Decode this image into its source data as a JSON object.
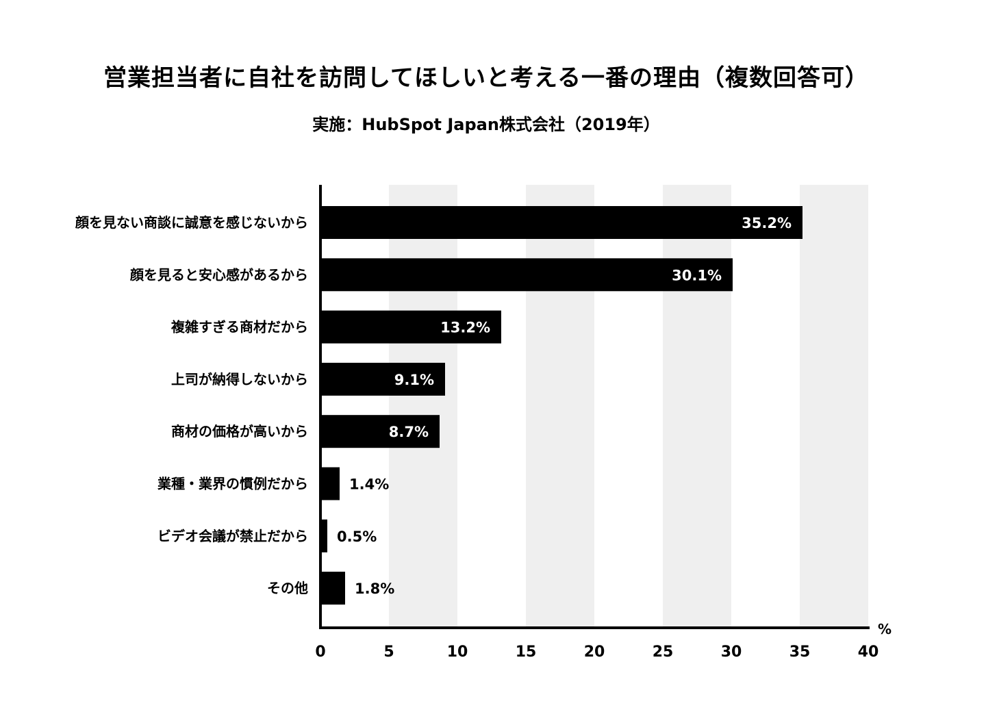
{
  "chart_data": {
    "type": "bar",
    "orientation": "horizontal",
    "title": "営業担当者に自社を訪問してほしいと考える一番の理由（複数回答可）",
    "subtitle": "実施：HubSpot Japan株式会社（2019年）",
    "categories": [
      "顔を見ない商談に誠意を感じないから",
      "顔を見ると安心感があるから",
      "複雑すぎる商材だから",
      "上司が納得しないから",
      "商材の価格が高いから",
      "業種・業界の慣例だから",
      "ビデオ会議が禁止だから",
      "その他"
    ],
    "values": [
      35.2,
      30.1,
      13.2,
      9.1,
      8.7,
      1.4,
      0.5,
      1.8
    ],
    "value_labels": [
      "35.2%",
      "30.1%",
      "13.2%",
      "9.1%",
      "8.7%",
      "1.4%",
      "0.5%",
      "1.8%"
    ],
    "xlim": [
      0,
      40
    ],
    "xticks": [
      "0",
      "5",
      "10",
      "15",
      "20",
      "25",
      "30",
      "35",
      "40"
    ],
    "xunit": "%",
    "bar_color": "#000000",
    "band_color": "#efefef",
    "inside_label_color": "#ffffff",
    "outside_label_color": "#000000",
    "grid": "alternating-bands"
  }
}
